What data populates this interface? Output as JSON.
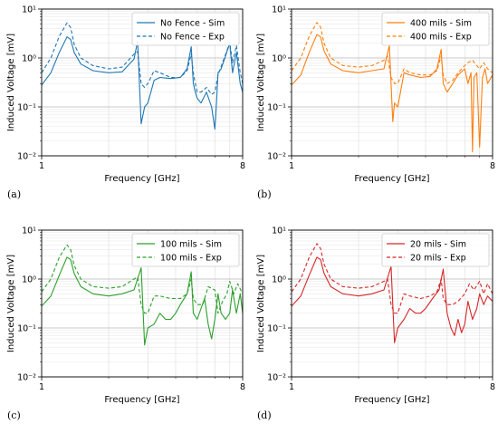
{
  "panel_labels": [
    "(a)",
    "(b)",
    "(c)",
    "(d)"
  ],
  "chart_data": [
    {
      "type": "line",
      "xlabel": "Frequency [GHz]",
      "ylabel": "Induced Voltage [mV]",
      "xscale": "log",
      "yscale": "log",
      "xlim": [
        1,
        8
      ],
      "ylim": [
        0.01,
        10
      ],
      "xtick_labels": [
        "1",
        "8"
      ],
      "ytick_labels": [
        "10^-2",
        "10^-1",
        "10^0",
        "10^1"
      ],
      "grid": true,
      "legend_position": "top-right",
      "color": "#1f77b4",
      "series": [
        {
          "name": "No Fence - Sim",
          "style": "solid",
          "x": [
            1.0,
            1.1,
            1.2,
            1.3,
            1.35,
            1.4,
            1.5,
            1.7,
            2.0,
            2.3,
            2.6,
            2.7,
            2.8,
            2.9,
            3.0,
            3.2,
            3.4,
            3.8,
            4.2,
            4.5,
            4.7,
            4.8,
            4.9,
            5.0,
            5.2,
            5.5,
            5.8,
            6.0,
            6.1,
            6.2,
            6.4,
            6.7,
            7.0,
            7.2,
            7.5,
            7.8,
            8.0
          ],
          "y": [
            0.28,
            0.5,
            1.3,
            2.7,
            2.4,
            1.3,
            0.75,
            0.55,
            0.5,
            0.52,
            0.95,
            2.2,
            0.045,
            0.1,
            0.12,
            0.35,
            0.4,
            0.38,
            0.4,
            0.6,
            1.7,
            0.3,
            0.2,
            0.15,
            0.12,
            0.2,
            0.1,
            0.035,
            0.12,
            0.5,
            0.6,
            1.1,
            2.0,
            0.5,
            1.3,
            0.3,
            0.2
          ]
        },
        {
          "name": "No Fence - Exp",
          "style": "dashed",
          "x": [
            1.0,
            1.1,
            1.2,
            1.3,
            1.35,
            1.4,
            1.5,
            1.7,
            2.0,
            2.3,
            2.6,
            2.7,
            2.8,
            2.9,
            3.0,
            3.2,
            3.4,
            3.8,
            4.2,
            4.5,
            4.7,
            4.8,
            4.9,
            5.0,
            5.2,
            5.5,
            5.8,
            6.0,
            6.2,
            6.5,
            6.8,
            7.0,
            7.2,
            7.5,
            7.8,
            8.0
          ],
          "y": [
            0.5,
            1.0,
            2.8,
            5.2,
            4.2,
            1.9,
            1.0,
            0.7,
            0.6,
            0.65,
            1.2,
            1.35,
            0.3,
            0.25,
            0.3,
            0.55,
            0.5,
            0.4,
            0.4,
            0.55,
            1.2,
            0.5,
            0.3,
            0.2,
            0.2,
            0.25,
            0.18,
            0.2,
            0.45,
            0.8,
            1.4,
            2.1,
            0.8,
            1.8,
            0.5,
            0.3
          ]
        }
      ]
    },
    {
      "type": "line",
      "xlabel": "Frequency [GHz]",
      "ylabel": "Induced Voltage [mV]",
      "xscale": "log",
      "yscale": "log",
      "xlim": [
        1,
        8
      ],
      "ylim": [
        0.01,
        10
      ],
      "xtick_labels": [
        "1",
        "8"
      ],
      "ytick_labels": [
        "10^-2",
        "10^-1",
        "10^0",
        "10^1"
      ],
      "grid": true,
      "legend_position": "top-right",
      "color": "#ff7f0e",
      "series": [
        {
          "name": "400 mils - Sim",
          "style": "solid",
          "x": [
            1.0,
            1.1,
            1.2,
            1.3,
            1.35,
            1.4,
            1.5,
            1.7,
            2.0,
            2.3,
            2.6,
            2.75,
            2.85,
            2.9,
            3.0,
            3.2,
            3.4,
            3.8,
            4.2,
            4.5,
            4.7,
            4.8,
            5.0,
            5.3,
            5.6,
            6.0,
            6.2,
            6.4,
            6.5,
            6.6,
            6.8,
            7.0,
            7.2,
            7.4,
            7.6,
            8.0
          ],
          "y": [
            0.28,
            0.45,
            1.3,
            3.0,
            2.7,
            1.4,
            0.75,
            0.55,
            0.5,
            0.55,
            0.6,
            1.8,
            0.05,
            0.12,
            0.1,
            0.5,
            0.45,
            0.4,
            0.42,
            0.6,
            1.5,
            0.3,
            0.2,
            0.3,
            0.45,
            0.6,
            0.3,
            0.5,
            0.012,
            0.4,
            0.5,
            0.015,
            0.4,
            0.6,
            0.3,
            0.45
          ]
        },
        {
          "name": "400 mils - Exp",
          "style": "dashed",
          "x": [
            1.0,
            1.1,
            1.2,
            1.3,
            1.35,
            1.4,
            1.5,
            1.7,
            2.0,
            2.3,
            2.6,
            2.7,
            2.8,
            2.9,
            3.0,
            3.2,
            3.4,
            3.8,
            4.2,
            4.5,
            4.7,
            4.8,
            5.0,
            5.3,
            5.6,
            6.0,
            6.2,
            6.5,
            6.8,
            7.0,
            7.3,
            7.6,
            8.0
          ],
          "y": [
            0.55,
            1.0,
            2.8,
            5.3,
            4.3,
            2.0,
            1.0,
            0.7,
            0.65,
            0.7,
            0.9,
            1.1,
            0.4,
            0.3,
            0.3,
            0.6,
            0.5,
            0.45,
            0.45,
            0.55,
            1.1,
            0.45,
            0.3,
            0.35,
            0.5,
            0.7,
            0.8,
            0.9,
            0.7,
            0.6,
            0.8,
            0.6,
            0.5
          ]
        }
      ]
    },
    {
      "type": "line",
      "xlabel": "Frequency [GHz]",
      "ylabel": "Induced Voltage [mV]",
      "xscale": "log",
      "yscale": "log",
      "xlim": [
        1,
        8
      ],
      "ylim": [
        0.01,
        10
      ],
      "xtick_labels": [
        "1",
        "8"
      ],
      "ytick_labels": [
        "10^-2",
        "10^-1",
        "10^0",
        "10^1"
      ],
      "grid": true,
      "legend_position": "top-right",
      "color": "#2ca02c",
      "series": [
        {
          "name": "100 mils - Sim",
          "style": "solid",
          "x": [
            1.0,
            1.1,
            1.2,
            1.3,
            1.35,
            1.4,
            1.5,
            1.7,
            2.0,
            2.3,
            2.6,
            2.8,
            2.9,
            3.0,
            3.2,
            3.4,
            3.6,
            3.8,
            4.0,
            4.2,
            4.5,
            4.7,
            4.8,
            5.0,
            5.2,
            5.4,
            5.6,
            5.8,
            6.0,
            6.2,
            6.4,
            6.7,
            7.0,
            7.2,
            7.5,
            7.8,
            8.0
          ],
          "y": [
            0.28,
            0.45,
            1.2,
            2.8,
            2.5,
            1.3,
            0.7,
            0.5,
            0.45,
            0.5,
            0.6,
            1.7,
            0.045,
            0.1,
            0.12,
            0.2,
            0.15,
            0.15,
            0.2,
            0.3,
            0.5,
            1.4,
            0.2,
            0.15,
            0.25,
            0.4,
            0.12,
            0.06,
            0.15,
            0.5,
            0.2,
            0.15,
            0.2,
            0.6,
            0.2,
            0.5,
            0.2
          ]
        },
        {
          "name": "100 mils - Exp",
          "style": "dashed",
          "x": [
            1.0,
            1.1,
            1.2,
            1.3,
            1.35,
            1.4,
            1.5,
            1.7,
            2.0,
            2.3,
            2.6,
            2.7,
            2.8,
            2.9,
            3.0,
            3.2,
            3.4,
            3.8,
            4.2,
            4.5,
            4.7,
            4.8,
            5.0,
            5.3,
            5.6,
            6.0,
            6.2,
            6.5,
            6.8,
            7.0,
            7.3,
            7.6,
            8.0
          ],
          "y": [
            0.55,
            1.0,
            2.8,
            5.0,
            4.0,
            1.9,
            1.0,
            0.7,
            0.65,
            0.7,
            1.0,
            1.1,
            0.3,
            0.2,
            0.2,
            0.45,
            0.45,
            0.4,
            0.4,
            0.5,
            1.0,
            0.4,
            0.3,
            0.3,
            0.7,
            0.6,
            0.2,
            0.35,
            0.5,
            0.9,
            0.5,
            0.8,
            0.5
          ]
        }
      ]
    },
    {
      "type": "line",
      "xlabel": "Frequency [GHz]",
      "ylabel": "Induced Voltage [mV]",
      "xscale": "log",
      "yscale": "log",
      "xlim": [
        1,
        8
      ],
      "ylim": [
        0.01,
        10
      ],
      "xtick_labels": [
        "1",
        "8"
      ],
      "ytick_labels": [
        "10^-2",
        "10^-1",
        "10^0",
        "10^1"
      ],
      "grid": true,
      "legend_position": "top-right",
      "color": "#d62728",
      "series": [
        {
          "name": "20 mils - Sim",
          "style": "solid",
          "x": [
            1.0,
            1.1,
            1.2,
            1.3,
            1.35,
            1.4,
            1.5,
            1.7,
            2.0,
            2.3,
            2.6,
            2.8,
            2.9,
            3.0,
            3.2,
            3.4,
            3.6,
            3.8,
            4.0,
            4.3,
            4.6,
            4.8,
            5.0,
            5.2,
            5.4,
            5.6,
            5.8,
            6.0,
            6.2,
            6.5,
            6.8,
            7.0,
            7.3,
            7.6,
            8.0
          ],
          "y": [
            0.28,
            0.45,
            1.2,
            2.8,
            2.5,
            1.3,
            0.7,
            0.5,
            0.45,
            0.5,
            0.6,
            1.8,
            0.05,
            0.1,
            0.15,
            0.25,
            0.2,
            0.2,
            0.25,
            0.4,
            0.6,
            1.6,
            0.2,
            0.1,
            0.07,
            0.15,
            0.08,
            0.12,
            0.35,
            0.15,
            0.25,
            0.5,
            0.3,
            0.45,
            0.35
          ]
        },
        {
          "name": "20 mils - Exp",
          "style": "dashed",
          "x": [
            1.0,
            1.1,
            1.2,
            1.3,
            1.35,
            1.4,
            1.5,
            1.7,
            2.0,
            2.3,
            2.6,
            2.7,
            2.8,
            2.9,
            3.0,
            3.2,
            3.4,
            3.8,
            4.2,
            4.5,
            4.7,
            4.8,
            5.0,
            5.3,
            5.6,
            6.0,
            6.3,
            6.6,
            7.0,
            7.3,
            7.6,
            8.0
          ],
          "y": [
            0.55,
            1.0,
            2.8,
            5.3,
            4.2,
            2.0,
            1.0,
            0.7,
            0.65,
            0.7,
            0.9,
            1.0,
            0.3,
            0.2,
            0.2,
            0.5,
            0.45,
            0.4,
            0.45,
            0.55,
            1.0,
            0.4,
            0.3,
            0.3,
            0.35,
            0.5,
            0.8,
            0.6,
            0.9,
            0.5,
            0.8,
            0.5
          ]
        }
      ]
    }
  ]
}
